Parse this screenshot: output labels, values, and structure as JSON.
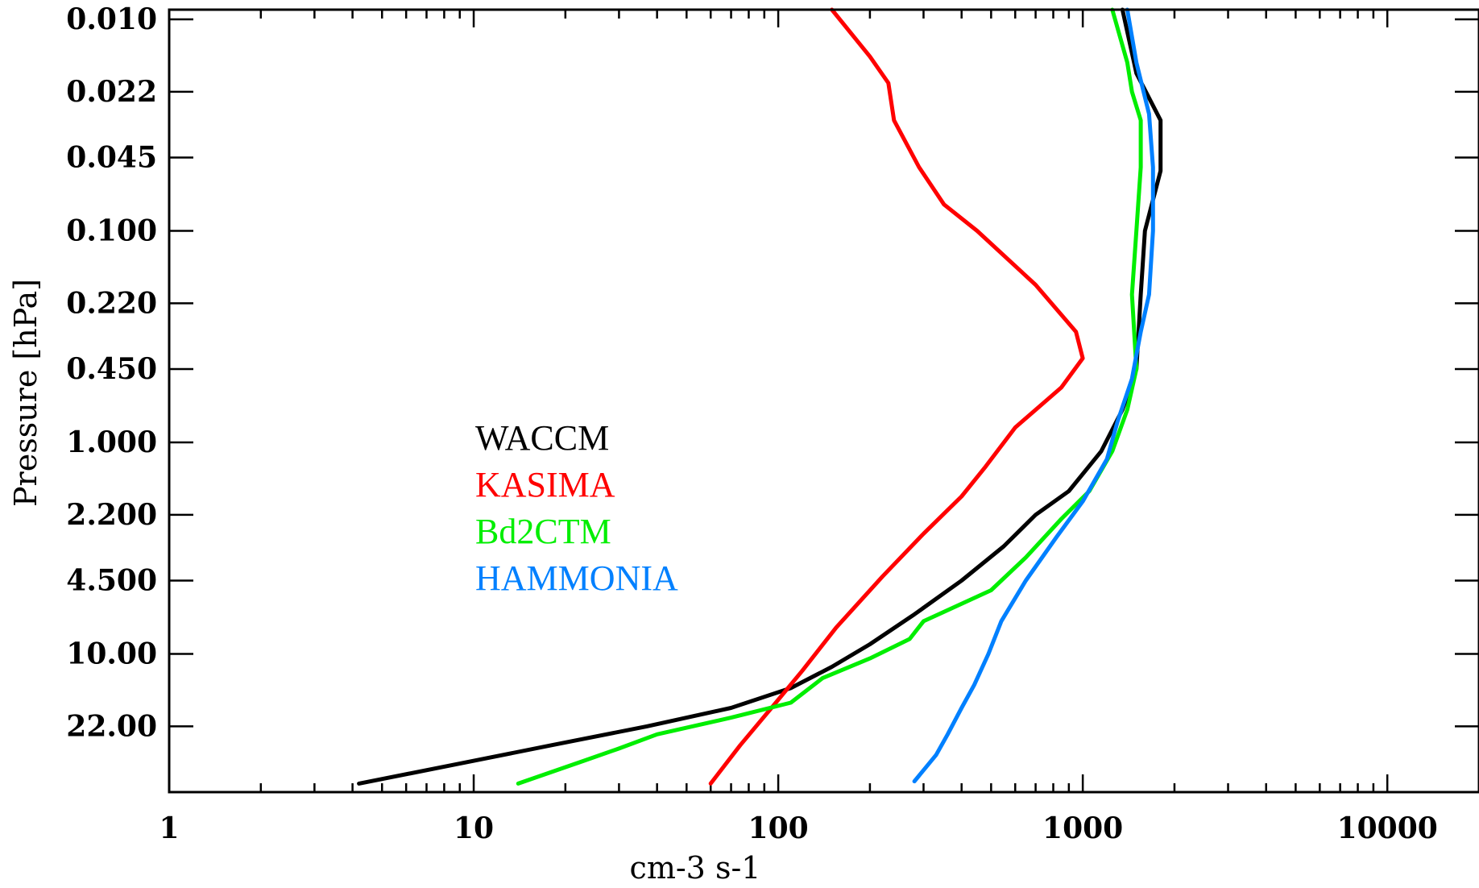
{
  "chart_data": {
    "type": "line",
    "xlabel": "cm-3 s-1",
    "ylabel": "Pressure [hPa]",
    "x_scale": "log",
    "y_scale": "log",
    "xlim": [
      1,
      20000
    ],
    "ylim": [
      45,
      0.009
    ],
    "x_ticks": [
      {
        "value": 1,
        "label": "1"
      },
      {
        "value": 10,
        "label": "10"
      },
      {
        "value": 100,
        "label": "100"
      },
      {
        "value": 1000,
        "label": "1000"
      },
      {
        "value": 10000,
        "label": "10000"
      }
    ],
    "y_ticks": [
      {
        "value": 0.01,
        "label": "0.010"
      },
      {
        "value": 0.022,
        "label": "0.022"
      },
      {
        "value": 0.045,
        "label": "0.045"
      },
      {
        "value": 0.1,
        "label": "0.100"
      },
      {
        "value": 0.22,
        "label": "0.220"
      },
      {
        "value": 0.45,
        "label": "0.450"
      },
      {
        "value": 1.0,
        "label": "1.000"
      },
      {
        "value": 2.2,
        "label": "2.200"
      },
      {
        "value": 4.5,
        "label": "4.500"
      },
      {
        "value": 10.0,
        "label": "10.00"
      },
      {
        "value": 22.0,
        "label": "22.00"
      }
    ],
    "grid": false,
    "legend_position": "left-center",
    "series": [
      {
        "name": "WACCM",
        "color": "#000000",
        "points": [
          [
            1350,
            0.009
          ],
          [
            1500,
            0.018
          ],
          [
            1800,
            0.03
          ],
          [
            1800,
            0.052
          ],
          [
            1600,
            0.1
          ],
          [
            1550,
            0.2
          ],
          [
            1500,
            0.45
          ],
          [
            1350,
            0.7
          ],
          [
            1150,
            1.1
          ],
          [
            900,
            1.7
          ],
          [
            700,
            2.2
          ],
          [
            550,
            3.1
          ],
          [
            400,
            4.5
          ],
          [
            280,
            6.5
          ],
          [
            200,
            9.0
          ],
          [
            150,
            11.5
          ],
          [
            110,
            14.5
          ],
          [
            70,
            18.0
          ],
          [
            37,
            22.0
          ],
          [
            18,
            27.0
          ],
          [
            9,
            33.0
          ],
          [
            4.2,
            41.0
          ]
        ]
      },
      {
        "name": "KASIMA",
        "color": "#ff0000",
        "points": [
          [
            150,
            0.009
          ],
          [
            200,
            0.015
          ],
          [
            230,
            0.02
          ],
          [
            240,
            0.03
          ],
          [
            290,
            0.05
          ],
          [
            350,
            0.075
          ],
          [
            450,
            0.1
          ],
          [
            700,
            0.18
          ],
          [
            950,
            0.3
          ],
          [
            1000,
            0.4
          ],
          [
            850,
            0.55
          ],
          [
            600,
            0.85
          ],
          [
            480,
            1.3
          ],
          [
            400,
            1.8
          ],
          [
            300,
            2.7
          ],
          [
            220,
            4.3
          ],
          [
            155,
            7.5
          ],
          [
            120,
            12.0
          ],
          [
            95,
            18.0
          ],
          [
            75,
            27.0
          ],
          [
            60,
            41.0
          ]
        ]
      },
      {
        "name": "Bd2CTM",
        "color": "#00ee00",
        "points": [
          [
            1250,
            0.009
          ],
          [
            1400,
            0.016
          ],
          [
            1450,
            0.022
          ],
          [
            1550,
            0.03
          ],
          [
            1550,
            0.05
          ],
          [
            1500,
            0.1
          ],
          [
            1450,
            0.2
          ],
          [
            1500,
            0.45
          ],
          [
            1400,
            0.7
          ],
          [
            1250,
            1.1
          ],
          [
            1050,
            1.7
          ],
          [
            850,
            2.3
          ],
          [
            650,
            3.5
          ],
          [
            500,
            5.0
          ],
          [
            300,
            7.0
          ],
          [
            270,
            8.5
          ],
          [
            200,
            10.5
          ],
          [
            140,
            13.0
          ],
          [
            110,
            17.0
          ],
          [
            70,
            20.0
          ],
          [
            40,
            24.0
          ],
          [
            30,
            28.0
          ],
          [
            23,
            32.0
          ],
          [
            14,
            41.0
          ]
        ]
      },
      {
        "name": "HAMMONIA",
        "color": "#0080ff",
        "points": [
          [
            1400,
            0.009
          ],
          [
            1500,
            0.016
          ],
          [
            1650,
            0.028
          ],
          [
            1700,
            0.05
          ],
          [
            1700,
            0.1
          ],
          [
            1650,
            0.2
          ],
          [
            1550,
            0.3
          ],
          [
            1450,
            0.5
          ],
          [
            1300,
            0.8
          ],
          [
            1200,
            1.2
          ],
          [
            1000,
            1.9
          ],
          [
            820,
            2.8
          ],
          [
            650,
            4.5
          ],
          [
            540,
            7.0
          ],
          [
            490,
            10.0
          ],
          [
            440,
            14.0
          ],
          [
            400,
            18.0
          ],
          [
            360,
            24.0
          ],
          [
            330,
            30.0
          ],
          [
            280,
            40.0
          ]
        ]
      }
    ]
  }
}
